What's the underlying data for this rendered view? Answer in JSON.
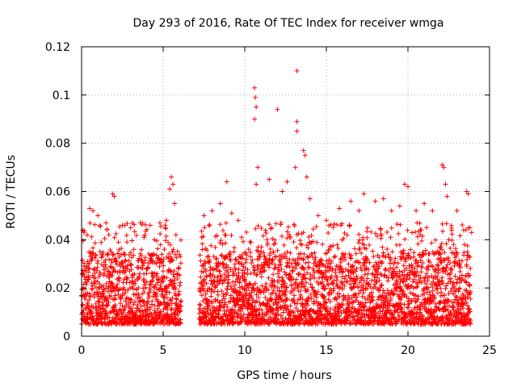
{
  "chart_data": {
    "type": "scatter",
    "title": "Day 293 of 2016, Rate Of TEC Index for receiver wmga",
    "xlabel": "GPS time / hours",
    "ylabel": "ROTI / TECUs",
    "xlim": [
      0,
      25
    ],
    "ylim": [
      0,
      0.12
    ],
    "x_ticks": [
      0,
      5,
      10,
      15,
      20,
      25
    ],
    "x_tick_labels": [
      "0",
      "5",
      "10",
      "15",
      "20",
      "25"
    ],
    "y_ticks": [
      0,
      0.02,
      0.04,
      0.06,
      0.08,
      0.1,
      0.12
    ],
    "y_tick_labels": [
      "0",
      "0.02",
      "0.04",
      "0.06",
      "0.08",
      "0.1",
      "0.12"
    ],
    "grid": true,
    "marker": "+",
    "color": "#ff0000",
    "gaps_hours": [
      [
        6.1,
        7.2
      ]
    ],
    "series": [
      {
        "name": "ROTI",
        "typical_band": [
          0.005,
          0.035
        ],
        "points": [
          [
            0.5,
            0.053
          ],
          [
            0.7,
            0.052
          ],
          [
            1.0,
            0.05
          ],
          [
            1.5,
            0.047
          ],
          [
            1.9,
            0.059
          ],
          [
            2.0,
            0.058
          ],
          [
            2.5,
            0.046
          ],
          [
            3.0,
            0.045
          ],
          [
            3.6,
            0.047
          ],
          [
            4.2,
            0.046
          ],
          [
            4.8,
            0.047
          ],
          [
            5.2,
            0.048
          ],
          [
            5.4,
            0.061
          ],
          [
            5.5,
            0.066
          ],
          [
            5.6,
            0.063
          ],
          [
            5.7,
            0.055
          ],
          [
            7.5,
            0.05
          ],
          [
            8.0,
            0.052
          ],
          [
            8.5,
            0.055
          ],
          [
            8.9,
            0.064
          ],
          [
            9.2,
            0.051
          ],
          [
            9.6,
            0.048
          ],
          [
            10.6,
            0.103
          ],
          [
            10.65,
            0.099
          ],
          [
            10.7,
            0.095
          ],
          [
            10.6,
            0.09
          ],
          [
            10.8,
            0.07
          ],
          [
            10.7,
            0.063
          ],
          [
            11.5,
            0.065
          ],
          [
            12.0,
            0.094
          ],
          [
            12.3,
            0.06
          ],
          [
            12.6,
            0.064
          ],
          [
            13.2,
            0.11
          ],
          [
            13.2,
            0.089
          ],
          [
            13.2,
            0.085
          ],
          [
            13.1,
            0.07
          ],
          [
            13.6,
            0.077
          ],
          [
            13.7,
            0.075
          ],
          [
            13.8,
            0.066
          ],
          [
            14.0,
            0.057
          ],
          [
            14.5,
            0.05
          ],
          [
            15.0,
            0.048
          ],
          [
            15.8,
            0.053
          ],
          [
            16.5,
            0.056
          ],
          [
            17.0,
            0.052
          ],
          [
            17.3,
            0.059
          ],
          [
            18.0,
            0.056
          ],
          [
            18.5,
            0.057
          ],
          [
            19.0,
            0.052
          ],
          [
            19.5,
            0.054
          ],
          [
            19.8,
            0.063
          ],
          [
            20.0,
            0.062
          ],
          [
            20.5,
            0.052
          ],
          [
            21.0,
            0.055
          ],
          [
            21.5,
            0.052
          ],
          [
            22.1,
            0.071
          ],
          [
            22.2,
            0.07
          ],
          [
            22.3,
            0.063
          ],
          [
            22.4,
            0.058
          ],
          [
            23.0,
            0.052
          ],
          [
            23.6,
            0.06
          ],
          [
            23.7,
            0.059
          ],
          [
            23.8,
            0.045
          ],
          [
            23.9,
            0.043
          ]
        ]
      }
    ]
  }
}
